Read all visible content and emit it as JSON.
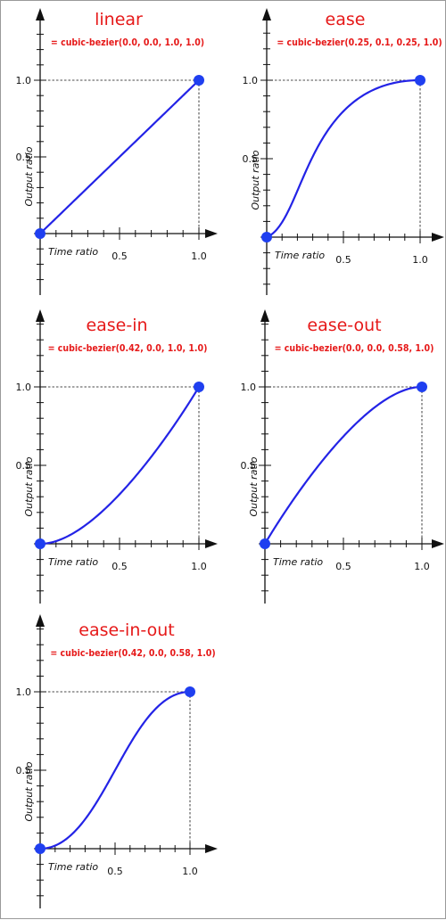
{
  "chart_data": [
    {
      "type": "line",
      "title": "linear",
      "subtitle": "= cubic-bezier(0.0, 0.0, 1.0, 1.0)",
      "bezier": [
        0.0,
        0.0,
        1.0,
        1.0
      ],
      "xlabel": "Time ratio",
      "ylabel": "Output ratio",
      "x_ticks": [
        0.5,
        1.0
      ],
      "x_tick_labels": [
        "0.5",
        "1.0"
      ],
      "y_ticks": [
        0.5,
        1.0
      ],
      "y_tick_labels": [
        "0.5",
        "1.0"
      ],
      "xlim": [
        0,
        1
      ],
      "ylim": [
        0,
        1
      ],
      "endpoints": [
        [
          0,
          0
        ],
        [
          1,
          1
        ]
      ]
    },
    {
      "type": "line",
      "title": "ease",
      "subtitle": "= cubic-bezier(0.25, 0.1, 0.25, 1.0)",
      "bezier": [
        0.25,
        0.1,
        0.25,
        1.0
      ],
      "xlabel": "Time ratio",
      "ylabel": "Output ratio",
      "x_ticks": [
        0.5,
        1.0
      ],
      "x_tick_labels": [
        "0.5",
        "1.0"
      ],
      "y_ticks": [
        0.5,
        1.0
      ],
      "y_tick_labels": [
        "0.5",
        "1.0"
      ],
      "xlim": [
        0,
        1
      ],
      "ylim": [
        0,
        1
      ],
      "endpoints": [
        [
          0,
          0
        ],
        [
          1,
          1
        ]
      ]
    },
    {
      "type": "line",
      "title": "ease-in",
      "subtitle": "= cubic-bezier(0.42, 0.0, 1.0, 1.0)",
      "bezier": [
        0.42,
        0.0,
        1.0,
        1.0
      ],
      "xlabel": "Time ratio",
      "ylabel": "Output ratio",
      "x_ticks": [
        0.5,
        1.0
      ],
      "x_tick_labels": [
        "0.5",
        "1.0"
      ],
      "y_ticks": [
        0.5,
        1.0
      ],
      "y_tick_labels": [
        "0.5",
        "1.0"
      ],
      "xlim": [
        0,
        1
      ],
      "ylim": [
        0,
        1
      ],
      "endpoints": [
        [
          0,
          0
        ],
        [
          1,
          1
        ]
      ]
    },
    {
      "type": "line",
      "title": "ease-out",
      "subtitle": "= cubic-bezier(0.0, 0.0, 0.58, 1.0)",
      "bezier": [
        0.0,
        0.0,
        0.58,
        1.0
      ],
      "xlabel": "Time ratio",
      "ylabel": "Output ratio",
      "x_ticks": [
        0.5,
        1.0
      ],
      "x_tick_labels": [
        "0.5",
        "1.0"
      ],
      "y_ticks": [
        0.5,
        1.0
      ],
      "y_tick_labels": [
        "0.5",
        "1.0"
      ],
      "xlim": [
        0,
        1
      ],
      "ylim": [
        0,
        1
      ],
      "endpoints": [
        [
          0,
          0
        ],
        [
          1,
          1
        ]
      ]
    },
    {
      "type": "line",
      "title": "ease-in-out",
      "subtitle": "= cubic-bezier(0.42, 0.0, 0.58, 1.0)",
      "bezier": [
        0.42,
        0.0,
        0.58,
        1.0
      ],
      "xlabel": "Time ratio",
      "ylabel": "Output ratio",
      "x_ticks": [
        0.5,
        1.0
      ],
      "x_tick_labels": [
        "0.5",
        "1.0"
      ],
      "y_ticks": [
        0.5,
        1.0
      ],
      "y_tick_labels": [
        "0.5",
        "1.0"
      ],
      "xlim": [
        0,
        1
      ],
      "ylim": [
        0,
        1
      ],
      "endpoints": [
        [
          0,
          0
        ],
        [
          1,
          1
        ]
      ]
    }
  ],
  "colors": {
    "curve": "#2323e6",
    "point": "#1f3ff0",
    "title": "#e61919",
    "axis": "#111111",
    "guide": "#111111",
    "frame": "#9a9a9a"
  }
}
